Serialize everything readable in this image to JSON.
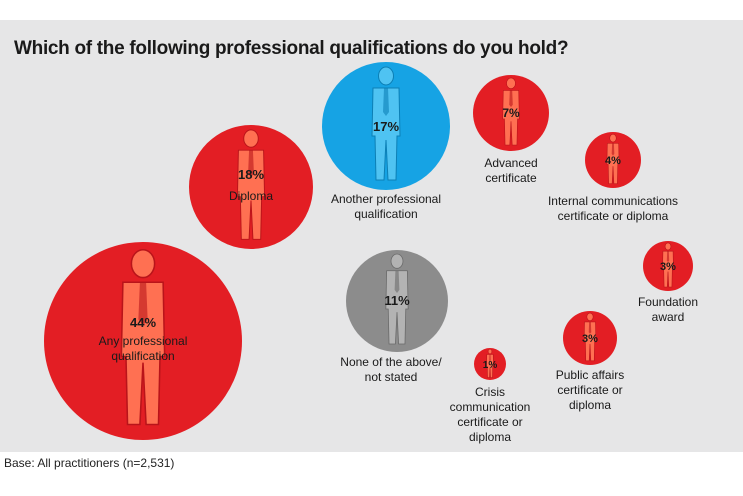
{
  "header": {
    "title": "Which of the following professional qualifications do you hold?"
  },
  "footer": {
    "base_note": "Base: All practitioners (n=2,531)"
  },
  "colors": {
    "red": "#e31e24",
    "blue": "#16a3e4",
    "grey": "#8c8c8c",
    "panel": "#e6e6e7"
  },
  "chart_data": {
    "type": "bubble",
    "unit": "%",
    "bubbles": [
      {
        "label_lines": [
          "Any professional",
          "qualification"
        ],
        "value": 44,
        "value_label": "44%",
        "color": "red"
      },
      {
        "label_lines": [
          "Diploma"
        ],
        "value": 18,
        "value_label": "18%",
        "color": "red"
      },
      {
        "label_lines": [
          "Another professional",
          "qualification"
        ],
        "value": 17,
        "value_label": "17%",
        "color": "blue"
      },
      {
        "label_lines": [
          "None of the above/",
          "not stated"
        ],
        "value": 11,
        "value_label": "11%",
        "color": "grey"
      },
      {
        "label_lines": [
          "Advanced",
          "certificate"
        ],
        "value": 7,
        "value_label": "7%",
        "color": "red"
      },
      {
        "label_lines": [
          "Internal communications",
          "certificate or diploma"
        ],
        "value": 4,
        "value_label": "4%",
        "color": "red"
      },
      {
        "label_lines": [
          "Foundation",
          "award"
        ],
        "value": 3,
        "value_label": "3%",
        "color": "red"
      },
      {
        "label_lines": [
          "Public affairs",
          "certificate or",
          "diploma"
        ],
        "value": 3,
        "value_label": "3%",
        "color": "red"
      },
      {
        "label_lines": [
          "Crisis",
          "communication",
          "certificate or",
          "diploma"
        ],
        "value": 1,
        "value_label": "1%",
        "color": "red"
      }
    ]
  }
}
